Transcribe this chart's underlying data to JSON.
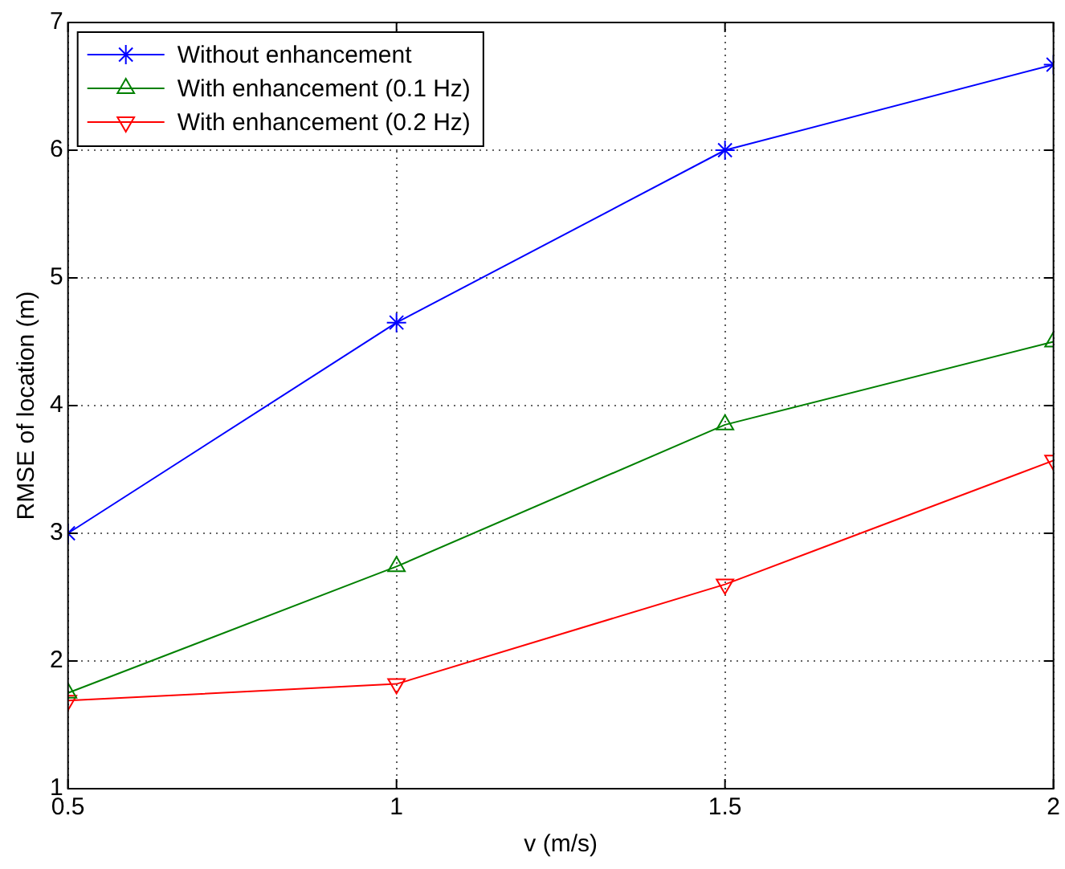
{
  "chart_data": {
    "type": "line",
    "xlabel": "v (m/s)",
    "ylabel": "RMSE of location (m)",
    "x": [
      0.5,
      1,
      1.5,
      2
    ],
    "series": [
      {
        "name": "Without enhancement",
        "color": "#0000ff",
        "marker": "cross",
        "values": [
          3.0,
          4.65,
          6.0,
          6.67
        ]
      },
      {
        "name": "With enhancement (0.1 Hz)",
        "color": "#008000",
        "marker": "triangle",
        "values": [
          1.75,
          2.74,
          3.85,
          4.5
        ]
      },
      {
        "name": "With enhancement (0.2 Hz)",
        "color": "#ff0000",
        "marker": "triangle_down",
        "values": [
          1.69,
          1.82,
          2.6,
          3.57
        ]
      }
    ],
    "xlim": [
      0.5,
      2
    ],
    "xticks": [
      0.5,
      1,
      1.5,
      2
    ],
    "ylim": [
      1,
      7
    ],
    "yticks": [
      1,
      2,
      3,
      4,
      5,
      6,
      7
    ],
    "grid": true,
    "line_style": "solid",
    "legend": "top left"
  }
}
